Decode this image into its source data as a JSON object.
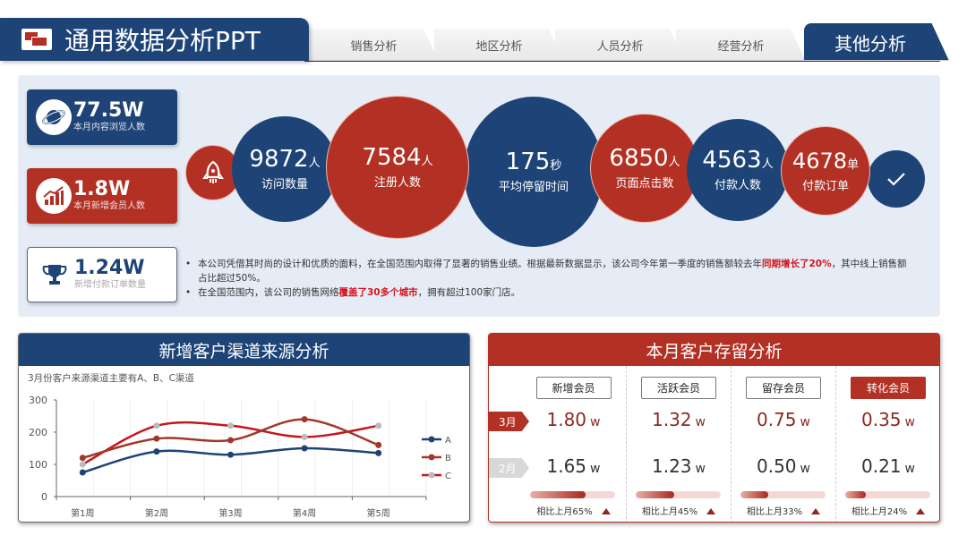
{
  "header": {
    "title": "通用数据分析PPT",
    "tabs": [
      {
        "label": "销售分析",
        "active": false
      },
      {
        "label": "地区分析",
        "active": false
      },
      {
        "label": "人员分析",
        "active": false
      },
      {
        "label": "经营分析",
        "active": false
      },
      {
        "label": "其他分析",
        "active": true
      }
    ]
  },
  "stat_cards": [
    {
      "value": "77.5W",
      "label": "本月内容浏览人数",
      "icon": "planet-icon"
    },
    {
      "value": "1.8W",
      "label": "本月新增会员人数",
      "icon": "bar-chart-icon"
    },
    {
      "value": "1.24W",
      "label": "新增付款订单数量",
      "icon": "trophy-icon"
    }
  ],
  "circles": [
    {
      "value": "9872",
      "unit": "人",
      "label": "访问数量"
    },
    {
      "value": "7584",
      "unit": "人",
      "label": "注册人数"
    },
    {
      "value": "175",
      "unit": "秒",
      "label": "平均停留时间"
    },
    {
      "value": "6850",
      "unit": "人",
      "label": "页面点击数"
    },
    {
      "value": "4563",
      "unit": "人",
      "label": "付款人数"
    },
    {
      "value": "4678",
      "unit": "单",
      "label": "付款订单"
    }
  ],
  "notes": {
    "line1_a": "本公司凭借其时尚的设计和优质的面料，在全国范围内取得了显著的销售业绩。根据最新数据显示，该公司今年第一季度的销售额较去年",
    "line1_hl": "同期增长了20%",
    "line1_b": "，其中线上销售额占比超过50%。",
    "line2_a": "在全国范围内，该公司的销售网络",
    "line2_hl": "覆盖了30多个城市",
    "line2_b": "，拥有超过100家门店。"
  },
  "chart_panel": {
    "title": "新增客户渠道来源分析",
    "subtitle": "3月份客户来源渠道主要有A、B、C渠道"
  },
  "chart_data": {
    "type": "line",
    "title": "新增客户渠道来源分析",
    "subtitle": "3月份客户来源渠道主要有A、B、C渠道",
    "categories": [
      "第1周",
      "第2周",
      "第3周",
      "第4周",
      "第5周"
    ],
    "series": [
      {
        "name": "A",
        "color": "#1e4477",
        "values": [
          75,
          140,
          130,
          150,
          135
        ]
      },
      {
        "name": "B",
        "color": "#a0392c",
        "values": [
          120,
          180,
          175,
          240,
          160
        ]
      },
      {
        "name": "C",
        "color": "#c4161c",
        "values": [
          100,
          220,
          220,
          185,
          220
        ]
      }
    ],
    "yticks": [
      0,
      100,
      200,
      300
    ],
    "ylim": [
      0,
      300
    ],
    "xlabel": "",
    "ylabel": "",
    "legend_position": "right",
    "smooth": true
  },
  "retention": {
    "title": "本月客户存留分析",
    "current_month": "3月",
    "previous_month": "2月",
    "unit": "w",
    "columns": [
      {
        "label": "新增会员",
        "current": "1.80",
        "previous": "1.65",
        "pct": 65,
        "compare": "相比上月65%",
        "active": false
      },
      {
        "label": "活跃会员",
        "current": "1.32",
        "previous": "1.23",
        "pct": 45,
        "compare": "相比上月45%",
        "active": false
      },
      {
        "label": "留存会员",
        "current": "0.75",
        "previous": "0.50",
        "pct": 33,
        "compare": "相比上月33%",
        "active": false
      },
      {
        "label": "转化会员",
        "current": "0.35",
        "previous": "0.21",
        "pct": 24,
        "compare": "相比上月24%",
        "active": true
      }
    ]
  },
  "colors": {
    "navy": "#1e4477",
    "red": "#b23124",
    "panel_bg": "#e6ecf6",
    "highlight": "#d4141e"
  }
}
